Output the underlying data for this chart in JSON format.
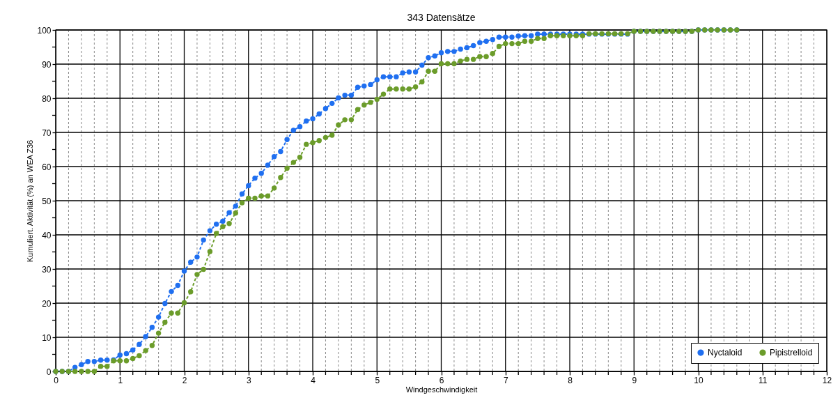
{
  "chart_data": {
    "type": "line",
    "title": "343 Datensätze",
    "xlabel": "Windgeschwindigkeit",
    "ylabel": "Kumuliert. Aktivität (%) an WEA Z36",
    "x": [
      0,
      0.1,
      0.2,
      0.3,
      0.4,
      0.5,
      0.6,
      0.7,
      0.8,
      0.9,
      1,
      1.1,
      1.2,
      1.3,
      1.4,
      1.5,
      1.6,
      1.7,
      1.8,
      1.9,
      2,
      2.1,
      2.2,
      2.3,
      2.4,
      2.5,
      2.6,
      2.7,
      2.8,
      2.9,
      3,
      3.1,
      3.2,
      3.3,
      3.4,
      3.5,
      3.6,
      3.7,
      3.8,
      3.9,
      4,
      4.1,
      4.2,
      4.3,
      4.4,
      4.5,
      4.6,
      4.7,
      4.8,
      4.9,
      5,
      5.1,
      5.2,
      5.3,
      5.4,
      5.5,
      5.6,
      5.7,
      5.8,
      5.9,
      6,
      6.1,
      6.2,
      6.3,
      6.4,
      6.5,
      6.6,
      6.7,
      6.8,
      6.9,
      7,
      7.1,
      7.2,
      7.3,
      7.4,
      7.5,
      7.6,
      7.7,
      7.8,
      7.9,
      8,
      8.1,
      8.2,
      8.3,
      8.4,
      8.5,
      8.6,
      8.7,
      8.8,
      8.9,
      9,
      9.1,
      9.2,
      9.3,
      9.4,
      9.5,
      9.6,
      9.7,
      9.8,
      9.9,
      10,
      10.1,
      10.2,
      10.3,
      10.4,
      10.5,
      10.6
    ],
    "series": [
      {
        "name": "Nyctaloid",
        "color": "#1f6ff0",
        "values": [
          0,
          0,
          0,
          1.2,
          2,
          2.9,
          2.9,
          3.3,
          3.3,
          3.4,
          4.8,
          5.2,
          6.3,
          7.9,
          10.2,
          12.9,
          15.9,
          19.9,
          23.4,
          25.2,
          29.4,
          32,
          33.5,
          38.5,
          41.2,
          43.1,
          44,
          46.5,
          48.4,
          52,
          54.4,
          56.6,
          58,
          60.4,
          62.9,
          64.4,
          67.9,
          70.6,
          71.7,
          73.3,
          74,
          75.4,
          77,
          78.5,
          80.1,
          80.9,
          80.9,
          83.2,
          83.6,
          84,
          85.4,
          86.3,
          86.3,
          86.3,
          87.4,
          87.7,
          87.7,
          89.7,
          91.9,
          92.4,
          93.3,
          93.7,
          93.7,
          94.4,
          94.8,
          95.4,
          96.3,
          96.7,
          97.2,
          97.9,
          97.9,
          97.9,
          98.2,
          98.3,
          98.3,
          98.8,
          98.8,
          98.8,
          98.8,
          98.8,
          98.8,
          98.8,
          98.8,
          98.8,
          98.8,
          98.8,
          98.8,
          98.8,
          98.8,
          98.8,
          99.6,
          99.6,
          99.6,
          99.6,
          99.6,
          99.6,
          99.6,
          99.6,
          99.6,
          99.6,
          100,
          100,
          100,
          100,
          100,
          100,
          100
        ]
      },
      {
        "name": "Pipistrelloid",
        "color": "#6b9c2a",
        "values": [
          0,
          0,
          0,
          0,
          0,
          0,
          0,
          1.5,
          1.5,
          3.1,
          3.1,
          3.1,
          3.8,
          4.6,
          6.1,
          7.6,
          11.2,
          14.4,
          17.1,
          17.1,
          20.1,
          23.3,
          28.4,
          29.9,
          35.1,
          40.4,
          42.4,
          43.3,
          46.4,
          49.4,
          50.7,
          50.7,
          51.4,
          51.4,
          53.7,
          56.8,
          59.5,
          61.2,
          62.7,
          66.5,
          67,
          67.6,
          68.5,
          69.2,
          72.2,
          73.7,
          73.7,
          76.7,
          78,
          78.8,
          79.7,
          81.2,
          82.7,
          82.7,
          82.7,
          82.7,
          83.3,
          84.8,
          87.9,
          87.9,
          90.1,
          90.1,
          90.1,
          90.9,
          91.4,
          91.4,
          92.2,
          92.2,
          93.1,
          95.2,
          96,
          96,
          96,
          96.7,
          96.7,
          97.5,
          97.5,
          98.3,
          98.3,
          98.3,
          98.3,
          98.3,
          98.3,
          98.9,
          98.9,
          98.9,
          98.9,
          98.9,
          98.9,
          98.9,
          99.6,
          99.6,
          99.6,
          99.6,
          99.6,
          99.6,
          99.6,
          99.6,
          99.6,
          99.6,
          100,
          100,
          100,
          100,
          100,
          100,
          100
        ]
      }
    ],
    "xlim": [
      0,
      12
    ],
    "xticks": [
      0,
      {
        "value": 0.2,
        "label": null
      },
      {
        "value": 0.4,
        "label": null
      },
      {
        "value": 0.6,
        "label": null
      },
      {
        "value": 0.8,
        "label": null
      },
      1,
      {
        "value": 1.2,
        "label": null
      },
      {
        "value": 1.4,
        "label": null
      },
      {
        "value": 1.6,
        "label": null
      },
      {
        "value": 1.8,
        "label": null
      },
      2,
      {
        "value": 2.2,
        "label": null
      },
      {
        "value": 2.4,
        "label": null
      },
      {
        "value": 2.6,
        "label": null
      },
      {
        "value": 2.8,
        "label": null
      },
      3,
      {
        "value": 3.2,
        "label": null
      },
      {
        "value": 3.4,
        "label": null
      },
      {
        "value": 3.6,
        "label": null
      },
      {
        "value": 3.8,
        "label": null
      },
      4,
      {
        "value": 4.2,
        "label": null
      },
      {
        "value": 4.4,
        "label": null
      },
      {
        "value": 4.6,
        "label": null
      },
      {
        "value": 4.8,
        "label": null
      },
      5,
      {
        "value": 5.2,
        "label": null
      },
      {
        "value": 5.4,
        "label": null
      },
      {
        "value": 5.6,
        "label": null
      },
      {
        "value": 5.8,
        "label": null
      },
      6,
      {
        "value": 6.2,
        "label": null
      },
      {
        "value": 6.4,
        "label": null
      },
      {
        "value": 6.6,
        "label": null
      },
      {
        "value": 6.8,
        "label": null
      },
      7,
      {
        "value": 7.2,
        "label": null
      },
      {
        "value": 7.4,
        "label": null
      },
      {
        "value": 7.6,
        "label": null
      },
      {
        "value": 7.8,
        "label": null
      },
      8,
      {
        "value": 8.2,
        "label": null
      },
      {
        "value": 8.4,
        "label": null
      },
      {
        "value": 8.6,
        "label": null
      },
      {
        "value": 8.8,
        "label": null
      },
      9,
      {
        "value": 9.2,
        "label": null
      },
      {
        "value": 9.4,
        "label": null
      },
      {
        "value": 9.6,
        "label": null
      },
      {
        "value": 9.8,
        "label": null
      },
      10,
      {
        "value": 10.2,
        "label": null
      },
      {
        "value": 10.4,
        "label": null
      },
      {
        "value": 10.6,
        "label": null
      },
      {
        "value": 10.8,
        "label": null
      },
      11,
      {
        "value": 11.2,
        "label": null
      },
      {
        "value": 11.4,
        "label": null
      },
      {
        "value": 11.6,
        "label": null
      },
      {
        "value": 11.8,
        "label": null
      },
      12
    ],
    "ylim": [
      0,
      100
    ],
    "yticks": [
      0,
      {
        "value": 5,
        "label": null
      },
      10,
      {
        "value": 15,
        "label": null
      },
      20,
      {
        "value": 25,
        "label": null
      },
      30,
      {
        "value": 35,
        "label": null
      },
      40,
      {
        "value": 45,
        "label": null
      },
      50,
      {
        "value": 55,
        "label": null
      },
      60,
      {
        "value": 65,
        "label": null
      },
      70,
      {
        "value": 75,
        "label": null
      },
      80,
      {
        "value": 85,
        "label": null
      },
      90,
      {
        "value": 95,
        "label": null
      },
      100
    ],
    "grid": true,
    "legend": "bottom right",
    "marker": "circle",
    "line_style": "dashed"
  }
}
